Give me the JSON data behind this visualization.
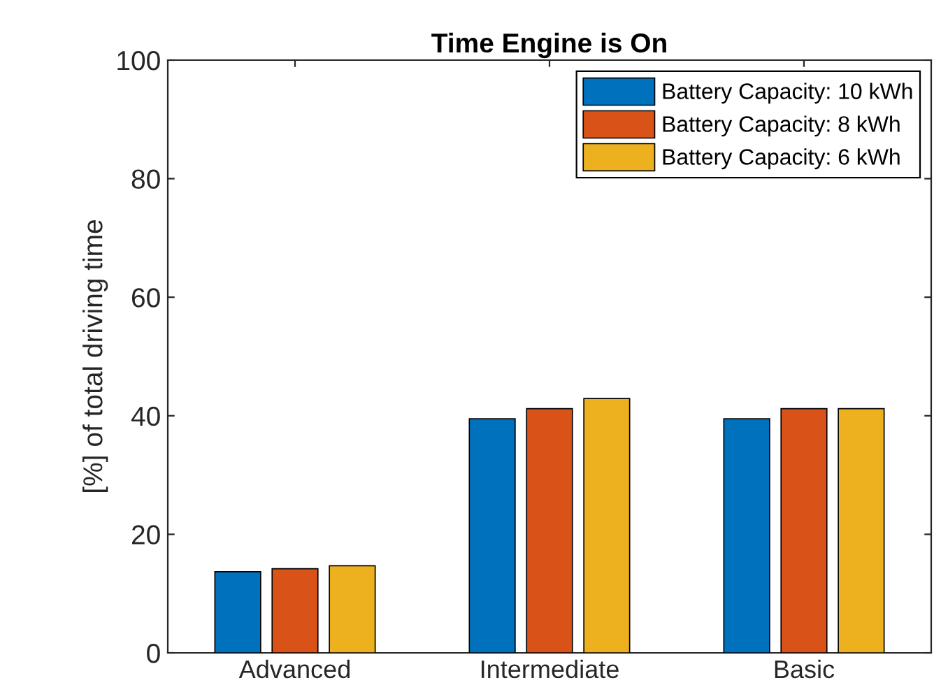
{
  "chart_data": {
    "type": "bar",
    "title": "Time Engine is On",
    "ylabel": "[%] of total driving time",
    "categories": [
      "Advanced",
      "Intermediate",
      "Basic"
    ],
    "series": [
      {
        "name": "Battery Capacity: 10 kWh",
        "color": "#0072bd",
        "values": [
          13.7,
          39.5,
          39.5
        ]
      },
      {
        "name": "Battery Capacity: 8 kWh",
        "color": "#d95319",
        "values": [
          14.2,
          41.2,
          41.2
        ]
      },
      {
        "name": "Battery Capacity: 6 kWh",
        "color": "#edb120",
        "values": [
          14.7,
          42.9,
          41.2
        ]
      }
    ],
    "ylim": [
      0,
      100
    ],
    "yticks": [
      0,
      20,
      40,
      60,
      80,
      100
    ],
    "grid": false,
    "legend": "top right"
  }
}
